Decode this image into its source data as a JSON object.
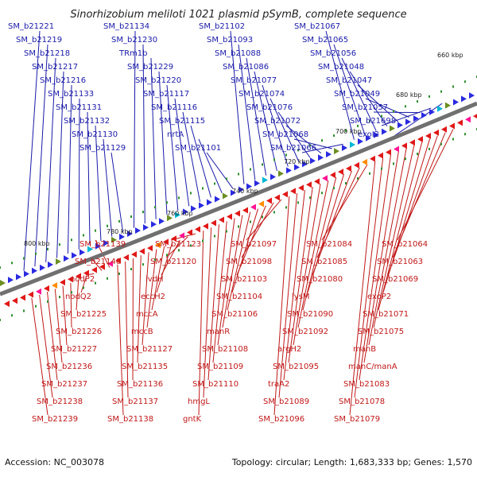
{
  "title": "Sinorhizobium meliloti 1021 plasmid pSymB, complete sequence",
  "footer": {
    "accession": "Accession: NC_003078",
    "summary": "Topology: circular; Length: 1,683,333 bp; Genes: 1,570"
  },
  "scale_labels": [
    "660 kbp",
    "680 kbp",
    "700 kbp",
    "720 kbp",
    "740 kbp",
    "760 kbp",
    "780 kbp",
    "800 kbp"
  ],
  "forward_genes": [
    "SM_b21221",
    "SM_b21219",
    "SM_b21218",
    "SM_b21217",
    "SM_b21216",
    "SM_b21133",
    "SM_b21131",
    "SM_b21132",
    "SM_b21130",
    "SM_b21129",
    "SM_b21134",
    "SM_b21230",
    "TRm1b",
    "SM_b21229",
    "SM_b21220",
    "SM_b21117",
    "SM_b21116",
    "SM_b21115",
    "nrtA",
    "SM_b21101",
    "SM_b21102",
    "SM_b21093",
    "SM_b21088",
    "SM_b21086",
    "SM_b21077",
    "SM_b21074",
    "SM_b21076",
    "SM_b21072",
    "SM_b21068",
    "SM_b21066",
    "SM_b21067",
    "SM_b21065",
    "SM_b21056",
    "SM_b21048",
    "SM_b21047",
    "SM_b21049",
    "SM_b21057",
    "SM_b21698",
    "exoI2"
  ],
  "reverse_genes": [
    "SM_b21064",
    "SM_b21063",
    "SM_b21069",
    "exoP2",
    "SM_b21071",
    "SM_b21075",
    "manB",
    "manC/manA",
    "SM_b21083",
    "SM_b21078",
    "SM_b21079",
    "SM_b21084",
    "SM_b21085",
    "SM_b21080",
    "lysM",
    "SM_b21090",
    "SM_b21092",
    "argH2",
    "SM_b21095",
    "traA2",
    "SM_b21089",
    "SM_b21096",
    "SM_b21097",
    "SM_b21098",
    "SM_b21103",
    "SM_b21104",
    "SM_b21106",
    "manR",
    "SM_b21108",
    "SM_b21109",
    "SM_b21110",
    "hmgL",
    "gntK",
    "SM_b21123",
    "SM_b21120",
    "ivdH",
    "eccH2",
    "mccA",
    "mccB",
    "SM_b21127",
    "SM_b21135",
    "SM_b21136",
    "SM_b21137",
    "SM_b21138",
    "SM_b21139",
    "SM_b21140",
    "nodP2",
    "nodQ2",
    "SM_b21225",
    "SM_b21226",
    "SM_b21227",
    "SM_b21236",
    "SM_b21237",
    "SM_b21238",
    "SM_b21239"
  ],
  "colors": {
    "forward": "#1a1aa8",
    "reverse": "#c01818",
    "backbone": "#707070",
    "tick": "#2f8f2f"
  }
}
